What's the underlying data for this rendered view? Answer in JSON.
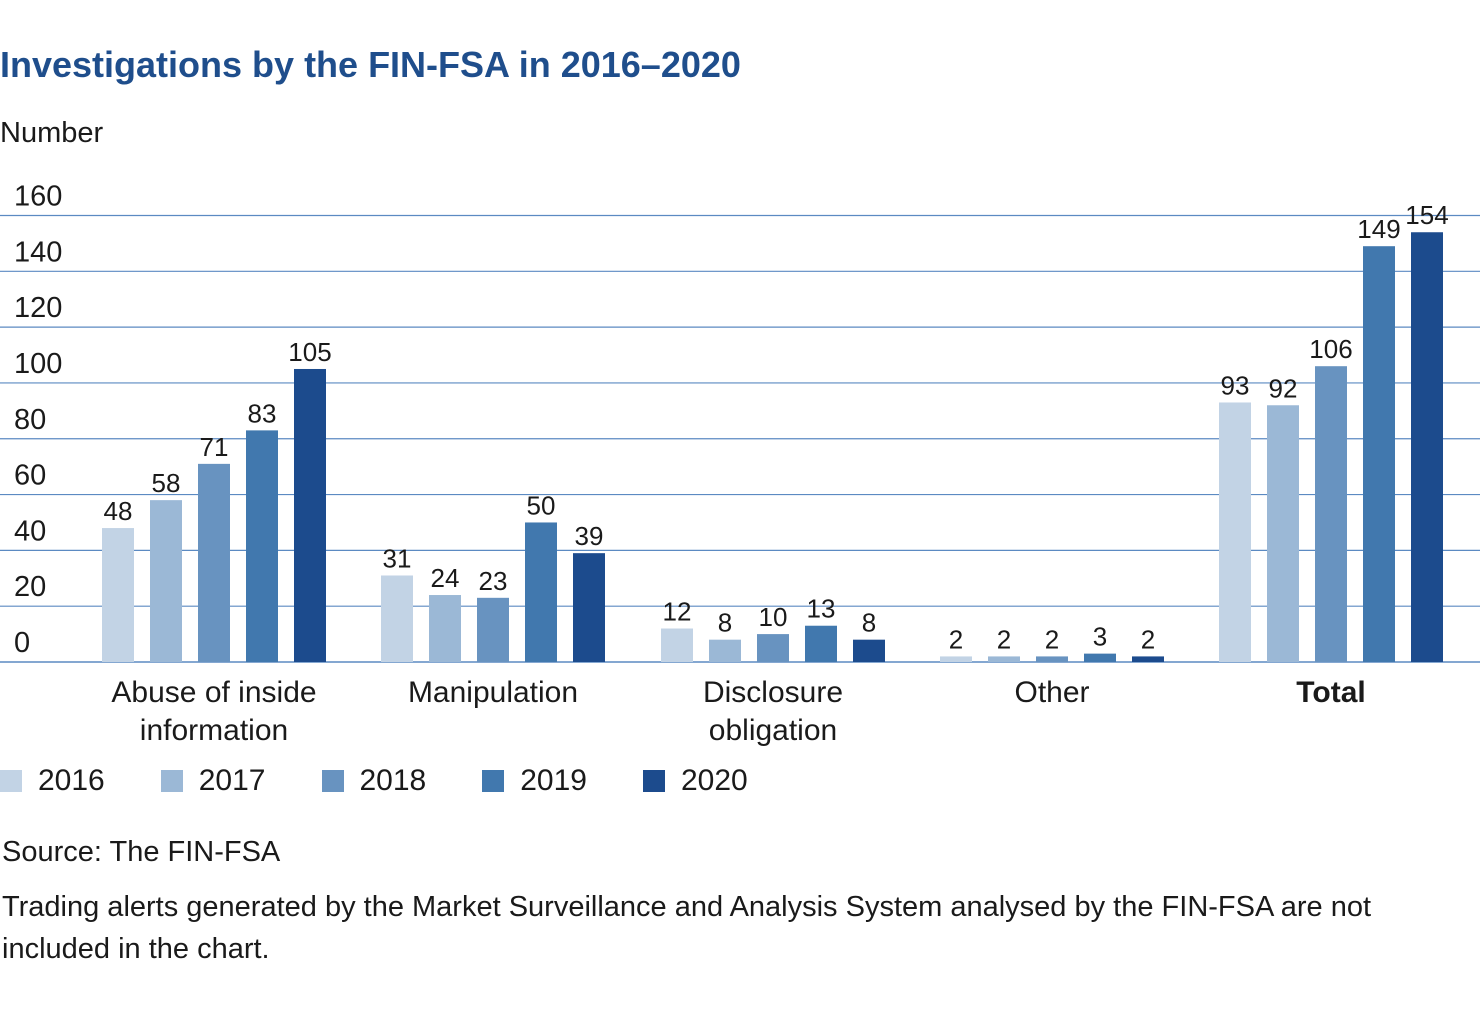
{
  "title": "Investigations by the FIN-FSA in 2016–2020",
  "unit_label": "Number",
  "source": "Source: The FIN-FSA",
  "note": "Trading alerts generated by the Market Surveillance and Analysis System analysed by the FIN-FSA are not included in the chart.",
  "colors": {
    "2016": "#c2d3e5",
    "2017": "#9bb8d6",
    "2018": "#6893c0",
    "2019": "#4178ae",
    "2020": "#1c4b8d",
    "gridline": "#5b8ac2",
    "title": "#1f4e8c"
  },
  "chart_data": {
    "type": "bar",
    "title": "Investigations by the FIN-FSA in 2016–2020",
    "ylabel": "Number",
    "ylim": [
      0,
      160
    ],
    "yticks": [
      0,
      20,
      40,
      60,
      80,
      100,
      120,
      140,
      160
    ],
    "grid": true,
    "legend_position": "bottom-left",
    "categories": [
      [
        "Abuse of inside",
        "information"
      ],
      [
        "Manipulation"
      ],
      [
        "Disclosure",
        "obligation"
      ],
      [
        "Other"
      ],
      [
        "Total"
      ]
    ],
    "bold_categories": [
      4
    ],
    "series": [
      {
        "name": "2016",
        "values": [
          48,
          31,
          12,
          2,
          93
        ]
      },
      {
        "name": "2017",
        "values": [
          58,
          24,
          8,
          2,
          92
        ]
      },
      {
        "name": "2018",
        "values": [
          71,
          23,
          10,
          2,
          106
        ]
      },
      {
        "name": "2019",
        "values": [
          83,
          50,
          13,
          3,
          149
        ]
      },
      {
        "name": "2020",
        "values": [
          105,
          39,
          8,
          2,
          154
        ]
      }
    ]
  }
}
